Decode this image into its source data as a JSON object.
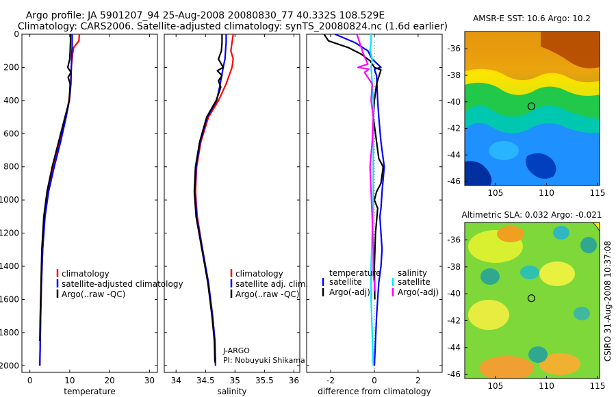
{
  "title": {
    "line1": "Argo profile: JA 5901207_94 25-Aug-2008 20080830_77 40.332S 108.529E",
    "line2": "Climatology: CARS2006. Satellite-adjusted climatology: synTS_20080824.nc (1.6d earlier)"
  },
  "side_caption": "CSIRO 31-Aug-2008 10:37:08",
  "colors": {
    "climatology": "#ff0000",
    "satellite": "#0000ff",
    "argo": "#000000",
    "sal_sat": "#00e5ff",
    "sal_argo": "#ff00ff",
    "zero_line": "#6f6f6f"
  },
  "chart_data": [
    {
      "type": "line",
      "xlabel": "temperature",
      "x_ticks": [
        "0",
        "10",
        "20",
        "30"
      ],
      "y_ticks": [
        "0",
        "200",
        "400",
        "600",
        "800",
        "1000",
        "1200",
        "1400",
        "1600",
        "1800",
        "2000"
      ],
      "xlim": [
        -2,
        32
      ],
      "ylim": [
        2040,
        0
      ],
      "legend": [
        "climatology",
        "satellite-adjusted climatology",
        "Argo(..raw -QC)"
      ],
      "series": [
        {
          "name": "climatology",
          "color": "#ff0000",
          "x": [
            12.4,
            12.3,
            11.0,
            10.7,
            10.4,
            10.2,
            9.8,
            9.0,
            7.5,
            5.9,
            4.6,
            3.7,
            3.2,
            2.9,
            2.7,
            2.6,
            2.5
          ],
          "y": [
            0,
            40,
            80,
            120,
            200,
            300,
            400,
            500,
            650,
            800,
            950,
            1100,
            1300,
            1500,
            1700,
            1850,
            2000
          ]
        },
        {
          "name": "satellite-adjusted climatology",
          "color": "#0000ff",
          "x": [
            10.6,
            10.6,
            10.6,
            10.5,
            10.4,
            10.3,
            9.9,
            9.1,
            7.7,
            6.1,
            4.7,
            3.8,
            3.2,
            2.9,
            2.7,
            2.6,
            2.5
          ],
          "y": [
            0,
            40,
            80,
            120,
            200,
            300,
            400,
            500,
            650,
            800,
            950,
            1100,
            1300,
            1500,
            1700,
            1850,
            2000
          ]
        },
        {
          "name": "Argo(..raw -QC)",
          "color": "#000000",
          "x": [
            10.2,
            10.2,
            10.1,
            10.0,
            9.5,
            10.3,
            9.6,
            10.1,
            9.9,
            8.8,
            7.2,
            5.6,
            4.3,
            3.5,
            3.0,
            2.8,
            2.6,
            2.5
          ],
          "y": [
            0,
            40,
            100,
            150,
            200,
            230,
            260,
            300,
            400,
            500,
            650,
            800,
            950,
            1100,
            1300,
            1500,
            1700,
            1850
          ]
        }
      ]
    },
    {
      "type": "line",
      "xlabel": "salinity",
      "x_ticks": [
        "34",
        "34.5",
        "35",
        "35.5",
        "36"
      ],
      "x_tick_values": [
        34,
        34.5,
        35,
        35.5,
        36
      ],
      "y_ticks": [
        "0",
        "200",
        "400",
        "600",
        "800",
        "1000",
        "1200",
        "1400",
        "1600",
        "1800",
        "2000"
      ],
      "xlim": [
        33.8,
        36.1
      ],
      "ylim": [
        2040,
        0
      ],
      "legend": [
        "climatology",
        "satellite adj. clim.",
        "Argo(..raw -QC)"
      ],
      "annotation": [
        "J-ARGO",
        "PI: Nobuyuki Shikama"
      ],
      "series": [
        {
          "name": "climatology",
          "color": "#ff0000",
          "x": [
            34.97,
            34.95,
            34.93,
            34.97,
            34.95,
            34.85,
            34.72,
            34.55,
            34.42,
            34.35,
            34.33,
            34.36,
            34.45,
            34.55,
            34.62,
            34.66,
            34.67
          ],
          "y": [
            0,
            50,
            100,
            150,
            200,
            300,
            400,
            500,
            650,
            800,
            950,
            1100,
            1300,
            1500,
            1700,
            1850,
            2000
          ]
        },
        {
          "name": "satellite adj. clim.",
          "color": "#0000ff",
          "x": [
            34.85,
            34.85,
            34.84,
            34.83,
            34.8,
            34.75,
            34.69,
            34.53,
            34.41,
            34.34,
            34.32,
            34.35,
            34.45,
            34.55,
            34.62,
            34.66,
            34.67
          ],
          "y": [
            0,
            50,
            100,
            150,
            200,
            300,
            400,
            500,
            650,
            800,
            950,
            1100,
            1300,
            1500,
            1700,
            1850,
            2000
          ]
        },
        {
          "name": "Argo(..raw -QC)",
          "color": "#000000",
          "x": [
            34.78,
            34.78,
            34.77,
            34.72,
            34.8,
            34.7,
            34.78,
            34.72,
            34.76,
            34.68,
            34.52,
            34.4,
            34.33,
            34.31,
            34.34,
            34.44,
            34.54,
            34.61,
            34.65,
            34.66
          ],
          "y": [
            0,
            50,
            100,
            150,
            200,
            220,
            250,
            280,
            320,
            400,
            500,
            650,
            800,
            950,
            1100,
            1300,
            1500,
            1700,
            1850,
            1980
          ]
        }
      ]
    },
    {
      "type": "line",
      "xlabel": "difference from climatology",
      "x_ticks": [
        "-2",
        "0",
        "2"
      ],
      "y_ticks": [
        "0",
        "200",
        "400",
        "600",
        "800",
        "1000",
        "1200",
        "1400",
        "1600",
        "1800",
        "2000"
      ],
      "xlim": [
        -3.1,
        3.1
      ],
      "ylim": [
        2040,
        0
      ],
      "legend_groups": [
        {
          "heading": "temperature",
          "items": [
            "satellite",
            "Argo(-adj)"
          ]
        },
        {
          "heading": "salinity",
          "items": [
            "satellite",
            "Argo(-adj)"
          ]
        }
      ],
      "series": [
        {
          "name": "temperature satellite",
          "color": "#0000ff",
          "x": [
            -1.8,
            -0.9,
            -0.3,
            -0.1,
            0.3,
            0.0,
            0.1,
            0.15,
            0.2,
            0.3,
            0.45,
            0.35,
            0.3,
            0.25,
            0.3,
            0.35,
            0.3,
            0.2,
            0.1,
            0.05,
            0.0
          ],
          "y": [
            0,
            50,
            100,
            150,
            200,
            210,
            250,
            400,
            500,
            650,
            800,
            950,
            1050,
            1100,
            1200,
            1300,
            1400,
            1500,
            1700,
            1850,
            2000
          ]
        },
        {
          "name": "temperature Argo(-adj)",
          "color": "#000000",
          "x": [
            -2.3,
            -2.1,
            -1.2,
            -0.6,
            -0.2,
            0.0,
            0.3,
            0.1,
            0.0,
            -0.05,
            0.1,
            0.2,
            0.4,
            0.3,
            0.1,
            0.0,
            0.15,
            0.05,
            0.0,
            0.02
          ],
          "y": [
            0,
            40,
            80,
            120,
            160,
            200,
            215,
            300,
            400,
            500,
            650,
            750,
            800,
            900,
            950,
            1000,
            1050,
            1200,
            1400,
            1600
          ]
        },
        {
          "name": "salinity satellite",
          "color": "#00e5ff",
          "x": [
            -0.15,
            -0.15,
            -0.2,
            -0.1,
            -0.15,
            -0.05,
            -0.05,
            -0.05,
            -0.05,
            -0.1,
            -0.15,
            -0.15,
            -0.1,
            -0.05
          ],
          "y": [
            0,
            50,
            100,
            150,
            200,
            400,
            600,
            800,
            1000,
            1200,
            1400,
            1600,
            1800,
            2000
          ]
        },
        {
          "name": "salinity Argo(-adj)",
          "color": "#ff00ff",
          "x": [
            -0.8,
            -0.7,
            -0.6,
            -0.5,
            -0.3,
            -0.75,
            -0.25,
            -0.45,
            -0.3,
            -0.1,
            -0.15,
            -0.05,
            -0.1,
            -0.2,
            -0.15,
            -0.1,
            -0.05,
            -0.05,
            0.0,
            0.0
          ],
          "y": [
            0,
            40,
            80,
            120,
            180,
            200,
            210,
            230,
            260,
            300,
            400,
            500,
            650,
            800,
            950,
            1100,
            1300,
            1450,
            1500,
            1550
          ]
        }
      ]
    },
    {
      "type": "heatmap",
      "title": "AMSR-E SST: 10.6 Argo: 10.2",
      "x_ticks": [
        "105",
        "110",
        "115"
      ],
      "x_tick_values": [
        105,
        110,
        115
      ],
      "y_ticks": [
        "-36",
        "-38",
        "-40",
        "-42",
        "-44",
        "-46"
      ],
      "y_tick_values": [
        -36,
        -38,
        -40,
        -42,
        -44,
        -46
      ],
      "xlim": [
        102,
        115.2
      ],
      "ylim": [
        -46.3,
        -34.7
      ],
      "marker": {
        "lon": 108.529,
        "lat": -40.332
      }
    },
    {
      "type": "heatmap",
      "title": "Altimetric SLA: 0.032 Argo: -0.021",
      "x_ticks": [
        "105",
        "110",
        "115"
      ],
      "x_tick_values": [
        105,
        110,
        115
      ],
      "y_ticks": [
        "-36",
        "-38",
        "-40",
        "-42",
        "-44",
        "-46"
      ],
      "y_tick_values": [
        -36,
        -38,
        -40,
        -42,
        -44,
        -46
      ],
      "xlim": [
        102,
        115.2
      ],
      "ylim": [
        -46.3,
        -34.7
      ],
      "marker": {
        "lon": 108.529,
        "lat": -40.332
      }
    }
  ]
}
